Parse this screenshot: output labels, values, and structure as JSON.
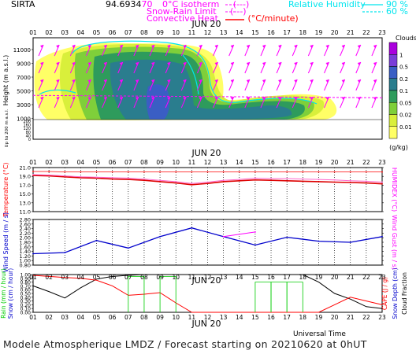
{
  "header": {
    "site": "SIRTA",
    "coords": "94.6934",
    "coords_tail": "70",
    "iso_label": "0°C isotherm",
    "iso_unit": "(---)",
    "snow_label": "Snow-Rain Limit",
    "snow_unit": "(---)",
    "conv_label": "Convective Heat",
    "conv_unit": "(°C/minute)",
    "rh_label": "Relative Humidity",
    "rh_90": "90 %",
    "rh_60": "60 %"
  },
  "hours": [
    "01",
    "02",
    "03",
    "04",
    "05",
    "06",
    "07",
    "08",
    "09",
    "10",
    "11",
    "12",
    "13",
    "14",
    "15",
    "16",
    "17",
    "18",
    "19",
    "20",
    "21",
    "22",
    "23"
  ],
  "date_label": "JUN 20",
  "footer": {
    "title": "Modele Atmospherique LMDZ / Forecast starting on 20210620 at 0hUT",
    "axis_label": "Universal Time"
  },
  "colors": {
    "bg": "#ffffff",
    "magenta": "#ff00ff",
    "cyan": "#00e5ee",
    "red": "#ff0000",
    "blue": "#0000cc",
    "green": "#00cc00",
    "black": "#000000"
  },
  "chart_data": [
    {
      "type": "heatmap",
      "title": "Clouds",
      "ylabel": "Height (m a.s.l.)",
      "ylabel2": "Up to 200 m a.s.l.",
      "colorbar_unit": "(g/kg)",
      "colorbar_ticks": [
        "1",
        "0.5",
        "0.2",
        "0.1",
        "0.05",
        "0.02",
        "0.01"
      ],
      "y_ticks_main": [
        "11000",
        "9000",
        "7000",
        "5000",
        "3000",
        "1000"
      ],
      "y_ticks_low": [
        "200",
        "180",
        "160",
        "140",
        "120",
        "100",
        "80",
        "60",
        "40",
        "20",
        "0"
      ],
      "x": [
        1,
        23
      ],
      "isotherm_0C_m": 3400,
      "snow_rain_limit_m": 3000
    },
    {
      "type": "line",
      "xlabel": "",
      "ylabel": "Temperature (°C)",
      "ylabel2": "HUMIDEX (°C)",
      "ylim": [
        11,
        21
      ],
      "y_ticks": [
        "21.0",
        "19.0",
        "17.0",
        "15.0",
        "13.0",
        "11.0"
      ],
      "x": [
        1,
        2,
        3,
        4,
        5,
        6,
        7,
        8,
        9,
        10,
        11,
        12,
        13,
        14,
        15,
        16,
        17,
        18,
        19,
        20,
        21,
        22,
        23
      ],
      "series": [
        {
          "values": [
            19.2,
            19.1,
            18.9,
            18.7,
            18.6,
            18.4,
            18.3,
            18.1,
            17.8,
            17.5,
            17.1,
            17.4,
            17.8,
            18.0,
            18.2,
            18.1,
            18.0,
            17.9,
            17.8,
            17.7,
            17.6,
            17.5,
            17.3
          ]
        },
        {
          "values": [
            19.4,
            19.3,
            19.1,
            18.9,
            18.8,
            18.7,
            18.6,
            18.4,
            18.1,
            17.8,
            17.4,
            17.7,
            18.1,
            18.3,
            18.6,
            18.5,
            18.5,
            18.4,
            18.3,
            18.2,
            18.0,
            17.9,
            17.7
          ]
        },
        {
          "values": [
            20.1,
            20.1,
            20.0,
            20.0,
            20.0,
            20.0,
            20.0,
            20.0,
            20.0,
            20.0,
            20.0,
            20.0,
            20.0,
            20.0,
            20.0,
            20.0,
            20.0,
            20.0,
            20.0,
            20.0,
            20.0,
            20.0,
            20.0
          ]
        }
      ]
    },
    {
      "type": "line",
      "ylabel": "Wind Speed (m / s)",
      "ylabel2": "Wind Gust (m / s)",
      "ylim": [
        0.8,
        2.8
      ],
      "y_ticks": [
        "2.80",
        "2.60",
        "2.40",
        "2.20",
        "2.00",
        "1.80",
        "1.60",
        "1.40",
        "1.20",
        "1.00",
        "0.80"
      ],
      "x": [
        1,
        3,
        5,
        7,
        9,
        11,
        13,
        15,
        17,
        19,
        21,
        23
      ],
      "series": [
        {
          "values": [
            1.3,
            1.35,
            1.88,
            1.55,
            2.05,
            2.43,
            2.05,
            1.68,
            2.02,
            1.85,
            1.8,
            2.05
          ]
        },
        {
          "values": [
            null,
            null,
            null,
            null,
            null,
            null,
            2.05,
            2.25,
            null,
            null,
            null,
            null
          ]
        }
      ]
    },
    {
      "type": "line",
      "ylabel": "Rain (mm / hour)",
      "ylabel2": "Snow (cm / hour)",
      "ylabel3": "CAPE (J / g)",
      "ylabel4": "Snow Depth (cm)",
      "ylabel5": "Cloud Fraction",
      "ylim": [
        0,
        1
      ],
      "y_ticks": [
        "1.00",
        "0.90",
        "0.80",
        "0.70",
        "0.60",
        "0.50",
        "0.40",
        "0.30",
        "0.20",
        "0.10",
        "0.00"
      ],
      "x": [
        1,
        2,
        3,
        4,
        5,
        6,
        7,
        8,
        9,
        10,
        11,
        12,
        13,
        14,
        15,
        16,
        17,
        18,
        19,
        20,
        21,
        22,
        23
      ],
      "series": [
        {
          "values": [
            0.7,
            0.55,
            0.38,
            0.65,
            0.88,
            0.95,
            0.98,
            1.0,
            1.0,
            1.0,
            1.0,
            1.0,
            1.0,
            1.0,
            1.0,
            1.0,
            1.0,
            1.0,
            0.8,
            0.5,
            0.35,
            0.15,
            0.1
          ]
        },
        {
          "values": [
            0.98,
            0.95,
            0.92,
            0.9,
            0.85,
            0.7,
            0.45,
            0.48,
            0.52,
            0.25,
            0.0,
            0.0,
            0.0,
            0.0,
            0.0,
            0.0,
            0.0,
            0.0,
            0.0,
            0.2,
            0.4,
            0.3,
            0.2
          ]
        },
        {
          "values": [
            0.0,
            0.0,
            0.0,
            0.0,
            0.0,
            0.0,
            0.95,
            0.0,
            0.95,
            0.0,
            0.0,
            0.0,
            0.0,
            0.0,
            0.8,
            0.8,
            0.8,
            0.0,
            0.0,
            0.0,
            0.0,
            0.0,
            0.0
          ]
        }
      ]
    }
  ]
}
